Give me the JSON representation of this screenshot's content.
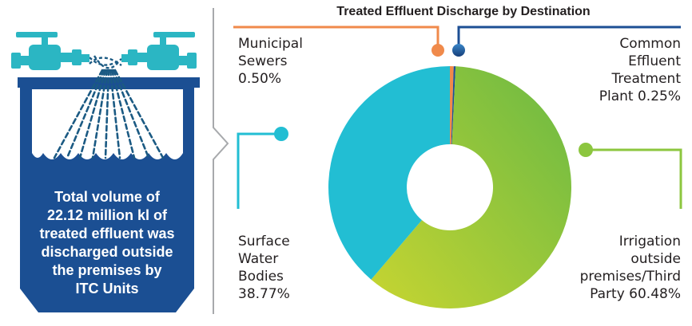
{
  "colors": {
    "tank_blue": "#1b4f93",
    "pipe_teal": "#2bb6c3",
    "municipal": "#f08a4b",
    "cetp": "#1d4f94",
    "surface": "#22bed3",
    "irrigation_start": "#c7d531",
    "irrigation_end": "#69b944",
    "divider": "#a7a9ac"
  },
  "infographic": {
    "text_lines": [
      "Total volume of",
      "22.12 million kl of",
      "treated effluent was",
      "discharged outside",
      "the premises by",
      "ITC Units"
    ]
  },
  "chart_data": {
    "type": "pie",
    "title": "Treated Effluent Discharge by Destination",
    "donut": true,
    "unit": "%",
    "slices": [
      {
        "name": "Municipal Sewers",
        "value": 0.5,
        "label_lines": [
          "Municipal",
          "Sewers",
          "0.50%"
        ],
        "color": "#f08a4b"
      },
      {
        "name": "Common Effluent Treatment Plant",
        "value": 0.25,
        "label_lines": [
          "Common",
          "Effluent",
          "Treatment",
          "Plant 0.25%"
        ],
        "color": "#1d4f94"
      },
      {
        "name": "Irrigation outside premises/Third Party",
        "value": 60.48,
        "label_lines": [
          "Irrigation",
          "outside",
          "premises/Third",
          "Party 60.48%"
        ],
        "color": "#8cc63f"
      },
      {
        "name": "Surface Water Bodies",
        "value": 38.77,
        "label_lines": [
          "Surface",
          "Water",
          "Bodies",
          "38.77%"
        ],
        "color": "#22bed3"
      }
    ]
  }
}
